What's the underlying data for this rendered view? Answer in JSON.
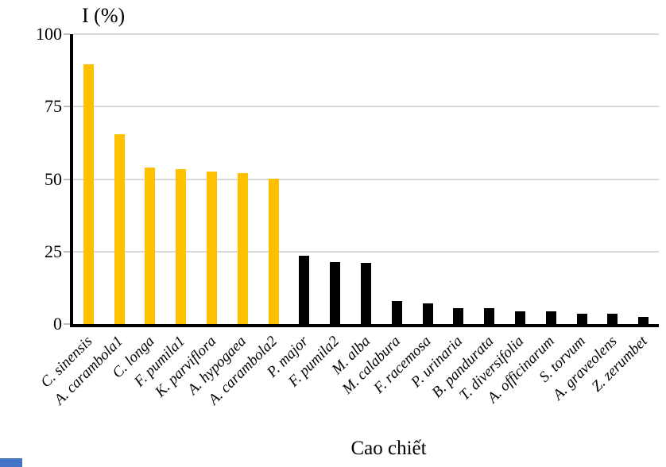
{
  "chart_data": {
    "type": "bar",
    "title": "I (%)",
    "xlabel": "Cao chiết",
    "ylabel": "I (%)",
    "ylim": [
      0,
      100
    ],
    "yticks": [
      0,
      25,
      50,
      75,
      100
    ],
    "ytick_labels": [
      "0",
      "25",
      "50",
      "75",
      "100"
    ],
    "grid": true,
    "legend_position": "none",
    "categories": [
      "C. sinensis",
      "A. carambola1",
      "C. longa",
      "F. pumila1",
      "K. parviflora",
      "A. hypogaea",
      "A. carambola2",
      "P. major",
      "F. pumila2",
      "M. alba",
      "M. calabura",
      "F. racemosa",
      "P. urinaria",
      "B. pandurata",
      "T. diversifolia",
      "A. officinarum",
      "S. torvum",
      "A. graveolens",
      "Z. zerumbet"
    ],
    "values": [
      89.5,
      65.5,
      54,
      53.5,
      52.5,
      52,
      50,
      23.5,
      21.5,
      21,
      8,
      7,
      5.5,
      5.5,
      4.5,
      4.5,
      3.5,
      3.5,
      2.5
    ],
    "bar_colors": [
      "#FFC000",
      "#FFC000",
      "#FFC000",
      "#FFC000",
      "#FFC000",
      "#FFC000",
      "#FFC000",
      "#000000",
      "#000000",
      "#000000",
      "#000000",
      "#000000",
      "#000000",
      "#000000",
      "#000000",
      "#000000",
      "#000000",
      "#000000",
      "#000000"
    ]
  },
  "palette": {
    "bar_yellow": "#FFC000",
    "bar_black": "#000000",
    "gridline": "#D9D9D9",
    "axis": "#000000",
    "tick_mark": "#BFBFBF",
    "artifact_blue": "#4472C4",
    "background": "#FFFFFF"
  }
}
